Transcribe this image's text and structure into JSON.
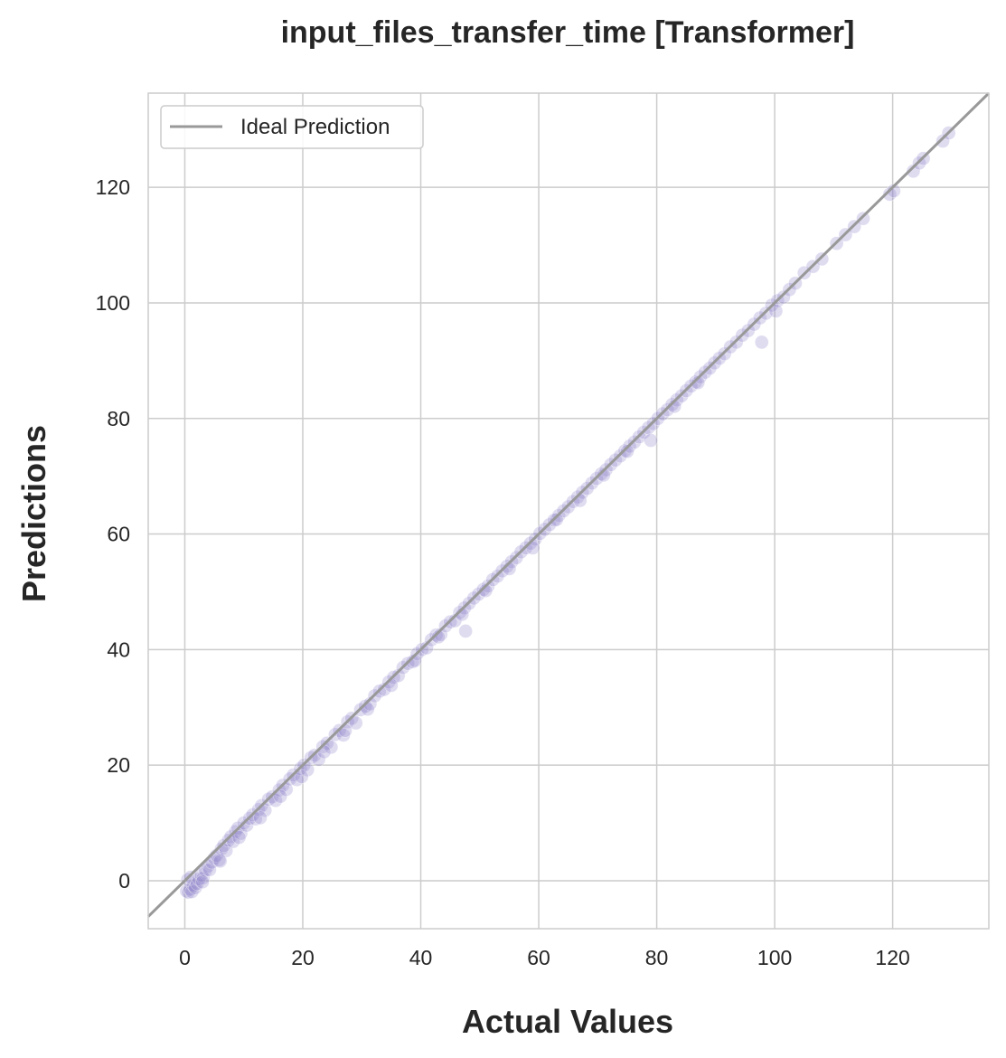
{
  "chart_data": {
    "type": "scatter",
    "title": "input_files_transfer_time [Transformer]",
    "xlabel": "Actual Values",
    "ylabel": "Predictions",
    "xlim": [
      -6.2,
      136.3
    ],
    "ylim": [
      -8.3,
      136.3
    ],
    "xticks": [
      0,
      20,
      40,
      60,
      80,
      100,
      120
    ],
    "yticks": [
      0,
      20,
      40,
      60,
      80,
      100,
      120
    ],
    "grid": true,
    "legend": {
      "position": "top-left",
      "entries": [
        "Ideal Prediction"
      ]
    },
    "ideal_line": {
      "name": "Ideal Prediction",
      "color": "#999999",
      "from": [
        -6.2,
        -6.2
      ],
      "to": [
        136.3,
        136.3
      ]
    },
    "point_color": "#8c80c8",
    "points": [
      [
        0.3,
        -1.8
      ],
      [
        0.6,
        -2.0
      ],
      [
        0.9,
        -1.5
      ],
      [
        1.2,
        -1.9
      ],
      [
        1.5,
        -0.8
      ],
      [
        0.5,
        0.2
      ],
      [
        1.0,
        0.6
      ],
      [
        1.8,
        -1.2
      ],
      [
        2.1,
        -0.5
      ],
      [
        2.4,
        0.3
      ],
      [
        2.8,
        1.0
      ],
      [
        3.1,
        0.5
      ],
      [
        3.5,
        1.8
      ],
      [
        3.9,
        2.5
      ],
      [
        4.2,
        1.9
      ],
      [
        4.6,
        3.2
      ],
      [
        5.0,
        3.9
      ],
      [
        5.4,
        4.4
      ],
      [
        5.8,
        3.6
      ],
      [
        6.2,
        5.5
      ],
      [
        6.6,
        6.1
      ],
      [
        7.0,
        5.2
      ],
      [
        7.4,
        7.0
      ],
      [
        7.8,
        7.6
      ],
      [
        8.2,
        6.8
      ],
      [
        8.6,
        8.5
      ],
      [
        9.0,
        9.1
      ],
      [
        9.5,
        8.2
      ],
      [
        10.0,
        10.0
      ],
      [
        10.5,
        9.6
      ],
      [
        11.0,
        10.8
      ],
      [
        11.5,
        11.4
      ],
      [
        12.0,
        10.7
      ],
      [
        12.5,
        12.3
      ],
      [
        13.0,
        13.0
      ],
      [
        13.6,
        12.2
      ],
      [
        14.2,
        14.1
      ],
      [
        14.8,
        14.5
      ],
      [
        15.4,
        13.9
      ],
      [
        16.0,
        15.7
      ],
      [
        16.6,
        16.5
      ],
      [
        17.2,
        15.8
      ],
      [
        17.8,
        17.6
      ],
      [
        18.4,
        18.3
      ],
      [
        19.0,
        17.5
      ],
      [
        19.6,
        19.4
      ],
      [
        20.2,
        20.0
      ],
      [
        20.8,
        19.2
      ],
      [
        21.4,
        21.3
      ],
      [
        22.0,
        21.7
      ],
      [
        22.7,
        21.0
      ],
      [
        23.4,
        23.2
      ],
      [
        24.1,
        23.8
      ],
      [
        24.8,
        23.1
      ],
      [
        25.5,
        25.3
      ],
      [
        26.2,
        26.0
      ],
      [
        26.9,
        25.2
      ],
      [
        27.6,
        27.5
      ],
      [
        28.3,
        28.1
      ],
      [
        29.0,
        27.3
      ],
      [
        29.8,
        29.6
      ],
      [
        30.6,
        30.2
      ],
      [
        31.4,
        30.6
      ],
      [
        32.2,
        32.0
      ],
      [
        33.0,
        32.8
      ],
      [
        33.8,
        33.1
      ],
      [
        34.6,
        34.4
      ],
      [
        35.4,
        35.2
      ],
      [
        36.2,
        35.5
      ],
      [
        37.0,
        36.9
      ],
      [
        37.8,
        37.6
      ],
      [
        38.6,
        37.9
      ],
      [
        39.4,
        39.3
      ],
      [
        40.2,
        40.0
      ],
      [
        41.0,
        40.3
      ],
      [
        41.8,
        41.7
      ],
      [
        42.6,
        42.5
      ],
      [
        43.4,
        42.6
      ],
      [
        44.2,
        44.1
      ],
      [
        45.0,
        44.8
      ],
      [
        45.8,
        45.0
      ],
      [
        46.6,
        46.4
      ],
      [
        47.4,
        47.2
      ],
      [
        48.2,
        48.0
      ],
      [
        47.6,
        43.2
      ],
      [
        49.0,
        48.9
      ],
      [
        49.8,
        49.6
      ],
      [
        50.6,
        50.4
      ],
      [
        51.4,
        51.0
      ],
      [
        52.2,
        52.1
      ],
      [
        53.0,
        52.7
      ],
      [
        53.8,
        53.6
      ],
      [
        54.6,
        54.4
      ],
      [
        55.4,
        55.2
      ],
      [
        56.2,
        55.9
      ],
      [
        57.0,
        56.9
      ],
      [
        57.8,
        57.6
      ],
      [
        58.6,
        58.4
      ],
      [
        59.4,
        59.1
      ],
      [
        60.2,
        60.1
      ],
      [
        61.0,
        60.8
      ],
      [
        61.8,
        61.6
      ],
      [
        62.6,
        62.4
      ],
      [
        63.4,
        63.2
      ],
      [
        64.2,
        64.0
      ],
      [
        65.0,
        64.7
      ],
      [
        65.8,
        65.6
      ],
      [
        66.6,
        66.4
      ],
      [
        67.4,
        67.2
      ],
      [
        68.2,
        67.9
      ],
      [
        69.0,
        68.8
      ],
      [
        69.8,
        69.6
      ],
      [
        70.6,
        70.4
      ],
      [
        71.4,
        71.1
      ],
      [
        72.2,
        72.0
      ],
      [
        73.0,
        72.8
      ],
      [
        73.8,
        73.5
      ],
      [
        74.6,
        74.4
      ],
      [
        75.4,
        75.2
      ],
      [
        76.2,
        75.9
      ],
      [
        77.0,
        76.8
      ],
      [
        77.8,
        77.6
      ],
      [
        78.6,
        78.4
      ],
      [
        79.4,
        79.1
      ],
      [
        80.2,
        80.0
      ],
      [
        81.0,
        80.8
      ],
      [
        81.8,
        81.5
      ],
      [
        82.6,
        82.4
      ],
      [
        83.4,
        83.2
      ],
      [
        84.2,
        83.9
      ],
      [
        85.0,
        84.8
      ],
      [
        85.8,
        85.6
      ],
      [
        86.6,
        86.3
      ],
      [
        87.4,
        87.2
      ],
      [
        88.2,
        88.0
      ],
      [
        89.0,
        88.7
      ],
      [
        89.8,
        89.6
      ],
      [
        90.6,
        90.4
      ],
      [
        91.5,
        91.2
      ],
      [
        92.5,
        92.4
      ],
      [
        93.5,
        93.2
      ],
      [
        94.5,
        94.4
      ],
      [
        95.5,
        95.2
      ],
      [
        96.5,
        96.3
      ],
      [
        97.5,
        97.4
      ],
      [
        98.5,
        98.2
      ],
      [
        99.5,
        99.6
      ],
      [
        100.5,
        100.4
      ],
      [
        101.5,
        101.0
      ],
      [
        102.5,
        102.3
      ],
      [
        103.5,
        103.4
      ],
      [
        97.8,
        93.2
      ],
      [
        100.2,
        98.6
      ],
      [
        105.0,
        105.2
      ],
      [
        106.5,
        106.3
      ],
      [
        108.0,
        107.6
      ],
      [
        110.5,
        110.3
      ],
      [
        112.0,
        111.8
      ],
      [
        113.5,
        113.2
      ],
      [
        115.0,
        114.6
      ],
      [
        119.5,
        118.8
      ],
      [
        120.2,
        119.4
      ],
      [
        123.5,
        122.8
      ],
      [
        124.5,
        124.2
      ],
      [
        125.2,
        125.0
      ],
      [
        128.5,
        128.0
      ],
      [
        129.5,
        129.4
      ],
      [
        3.0,
        -0.2
      ],
      [
        6.0,
        3.4
      ],
      [
        9.2,
        7.5
      ],
      [
        12.8,
        10.9
      ],
      [
        16.2,
        14.6
      ],
      [
        19.8,
        18.0
      ],
      [
        23.6,
        22.3
      ],
      [
        27.2,
        26.0
      ],
      [
        31.0,
        29.7
      ],
      [
        35.0,
        33.8
      ],
      [
        39.0,
        38.1
      ],
      [
        43.0,
        42.2
      ],
      [
        47.0,
        46.1
      ],
      [
        51.0,
        50.2
      ],
      [
        55.0,
        54.0
      ],
      [
        59.0,
        57.6
      ],
      [
        63.0,
        62.5
      ],
      [
        67.0,
        65.8
      ],
      [
        71.0,
        70.2
      ],
      [
        75.0,
        74.3
      ],
      [
        79.0,
        76.2
      ],
      [
        83.0,
        82.1
      ],
      [
        87.0,
        86.2
      ]
    ]
  }
}
